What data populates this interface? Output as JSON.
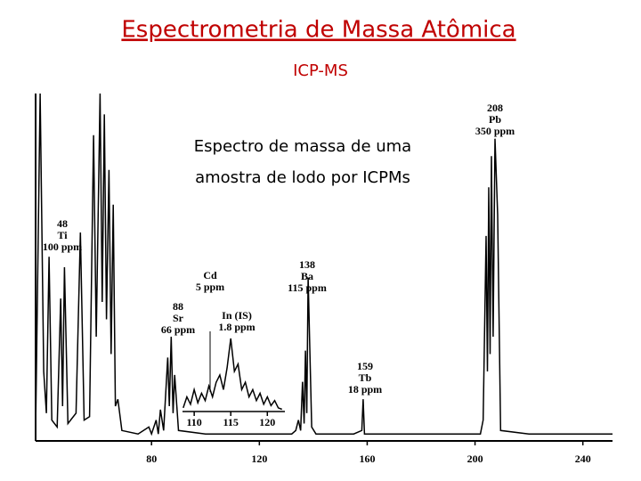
{
  "title": "Espectrometria de Massa Atômica",
  "subtitle": "ICP-MS",
  "caption": [
    "Espectro de massa de uma",
    "amostra de lodo por ICPMs"
  ],
  "chart_data": [
    {
      "type": "line",
      "x": [
        37,
        38.7,
        40,
        41,
        42,
        43,
        45,
        46.3,
        47,
        47.7,
        49,
        52,
        53.6,
        55,
        57,
        58.5,
        59.5,
        60.9,
        61.7,
        62.5,
        63.3,
        64.2,
        65,
        65.8,
        66.6,
        67.5,
        69,
        75,
        79,
        80,
        81.7,
        82.5,
        83.3,
        84.5,
        86,
        86.6,
        87.3,
        88,
        88.6,
        90,
        100,
        120,
        132,
        133.5,
        134.5,
        135.3,
        136,
        136.6,
        137.1,
        137.6,
        138.1,
        139.4,
        141,
        155,
        158,
        158.5,
        159,
        170,
        202,
        203,
        204.1,
        204.6,
        205.1,
        205.6,
        206.1,
        206.7,
        207.4,
        208.4,
        209.5,
        220,
        251
      ],
      "values": [
        3,
        100,
        20,
        8,
        53,
        6,
        4,
        41,
        10,
        50,
        5,
        8,
        60,
        6,
        7,
        88,
        30,
        100,
        40,
        94,
        35,
        78,
        25,
        68,
        10,
        12,
        3,
        2,
        4,
        2,
        6,
        2,
        9,
        3,
        24,
        10,
        30,
        8,
        19,
        3,
        2,
        2,
        2,
        3,
        6,
        3,
        17,
        5,
        26,
        8,
        47,
        4,
        2,
        2,
        3,
        12,
        2,
        2,
        2,
        6,
        59,
        20,
        73,
        25,
        82,
        30,
        87,
        65,
        3,
        2,
        2
      ],
      "xlim": [
        37,
        251
      ],
      "ylim": [
        0,
        100
      ],
      "xticks": [
        80,
        120,
        160,
        200,
        240
      ],
      "color": "#000000",
      "annotations": [
        [
          "48",
          "Ti",
          "100 ppm"
        ],
        [
          "88",
          "Sr",
          "66 ppm"
        ],
        [
          "Cd",
          "5 ppm"
        ],
        [
          "In (IS)",
          "1.8 ppm"
        ],
        [
          "138",
          "Ba",
          "115 ppm"
        ],
        [
          "159",
          "Tb",
          "18 ppm"
        ],
        [
          "208",
          "Pb",
          "350 ppm"
        ]
      ]
    },
    {
      "type": "line",
      "x": [
        108.5,
        109,
        109.5,
        110,
        110.5,
        111,
        111.5,
        112,
        112.5,
        113,
        113.5,
        114,
        114.5,
        115,
        115.5,
        116,
        116.5,
        117,
        117.5,
        118,
        118.5,
        119,
        119.5,
        120,
        120.5,
        121,
        121.5,
        122
      ],
      "values": [
        5,
        20,
        10,
        30,
        12,
        25,
        15,
        35,
        20,
        40,
        50,
        30,
        60,
        100,
        55,
        65,
        30,
        40,
        20,
        30,
        15,
        25,
        10,
        20,
        8,
        15,
        5,
        3
      ],
      "xlim": [
        108.4,
        122.4
      ],
      "ylim": [
        0,
        100
      ],
      "xticks": [
        110,
        115,
        120
      ],
      "color": "#000000"
    }
  ]
}
